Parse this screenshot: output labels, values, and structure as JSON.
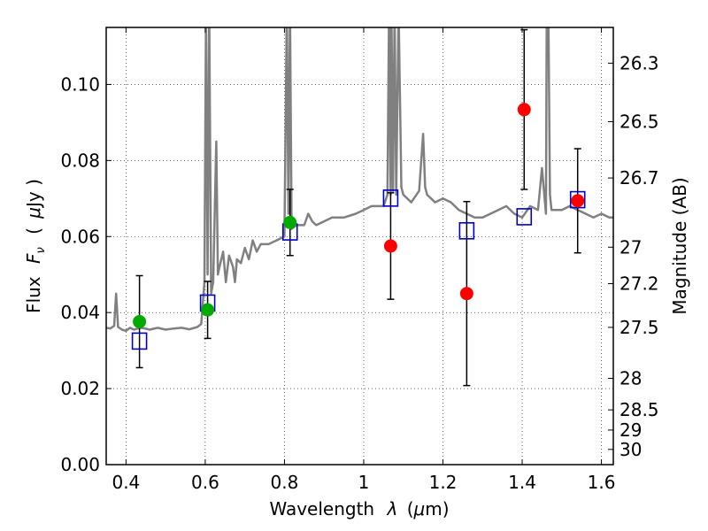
{
  "chart_data": {
    "type": "scatter",
    "title": "",
    "xlabel_text": "Wavelength",
    "xlabel_symbol": "λ",
    "xlabel_unit_open": "(",
    "xlabel_unit_mu": "μ",
    "xlabel_unit_rest": "m)",
    "ylabel_text": "Flux",
    "ylabel_symbol": "F",
    "ylabel_symbol_sub": "ν",
    "ylabel_unit_open": "(",
    "ylabel_unit_mu": "μ",
    "ylabel_unit_rest": "Jy )",
    "y2label": "Magnitude (AB)",
    "xlim": [
      0.35,
      1.63
    ],
    "ylim": [
      0.0,
      0.115
    ],
    "grid": true,
    "xticks": [
      {
        "value": 0.4,
        "label": "0.4"
      },
      {
        "value": 0.6,
        "label": "0.6"
      },
      {
        "value": 0.8,
        "label": "0.8"
      },
      {
        "value": 1.0,
        "label": "1"
      },
      {
        "value": 1.2,
        "label": "1.2"
      },
      {
        "value": 1.4,
        "label": "1.4"
      },
      {
        "value": 1.6,
        "label": "1.6"
      }
    ],
    "yticks": [
      {
        "value": 0.0,
        "label": "0.00"
      },
      {
        "value": 0.02,
        "label": "0.02"
      },
      {
        "value": 0.04,
        "label": "0.04"
      },
      {
        "value": 0.06,
        "label": "0.06"
      },
      {
        "value": 0.08,
        "label": "0.08"
      },
      {
        "value": 0.1,
        "label": "0.10"
      }
    ],
    "y2ticks": [
      {
        "label": "26.3",
        "flux": 0.1056
      },
      {
        "label": "26.5",
        "flux": 0.0902
      },
      {
        "label": "26.7",
        "flux": 0.0754
      },
      {
        "label": "27",
        "flux": 0.0572
      },
      {
        "label": "27.2",
        "flux": 0.0476
      },
      {
        "label": "27.5",
        "flux": 0.0361
      },
      {
        "label": "28",
        "flux": 0.0227
      },
      {
        "label": "28.5",
        "flux": 0.0144
      },
      {
        "label": "29",
        "flux": 0.0091
      },
      {
        "label": "30",
        "flux": 0.004
      }
    ],
    "spectrum": {
      "name": "model spectrum",
      "color": "#808080",
      "x": [
        0.35,
        0.36,
        0.37,
        0.375,
        0.38,
        0.39,
        0.4,
        0.41,
        0.42,
        0.43,
        0.44,
        0.46,
        0.48,
        0.5,
        0.52,
        0.54,
        0.56,
        0.58,
        0.59,
        0.598,
        0.602,
        0.606,
        0.61,
        0.615,
        0.62,
        0.628,
        0.632,
        0.636,
        0.645,
        0.652,
        0.66,
        0.67,
        0.675,
        0.68,
        0.69,
        0.7,
        0.71,
        0.72,
        0.73,
        0.74,
        0.76,
        0.78,
        0.8,
        0.806,
        0.81,
        0.814,
        0.818,
        0.83,
        0.85,
        0.86,
        0.87,
        0.88,
        0.9,
        0.92,
        0.95,
        0.98,
        1.0,
        1.02,
        1.05,
        1.06,
        1.064,
        1.068,
        1.07,
        1.074,
        1.078,
        1.082,
        1.088,
        1.095,
        1.1,
        1.12,
        1.14,
        1.15,
        1.155,
        1.16,
        1.17,
        1.18,
        1.2,
        1.22,
        1.24,
        1.26,
        1.28,
        1.3,
        1.32,
        1.34,
        1.36,
        1.38,
        1.4,
        1.42,
        1.44,
        1.45,
        1.46,
        1.462,
        1.466,
        1.47,
        1.474,
        1.48,
        1.5,
        1.52,
        1.54,
        1.56,
        1.58,
        1.6,
        1.62,
        1.63
      ],
      "y": [
        0.036,
        0.0358,
        0.0365,
        0.045,
        0.0362,
        0.0355,
        0.0352,
        0.036,
        0.0355,
        0.0358,
        0.036,
        0.0355,
        0.036,
        0.0355,
        0.0358,
        0.036,
        0.0356,
        0.0362,
        0.037,
        0.048,
        0.12,
        0.05,
        0.12,
        0.045,
        0.048,
        0.085,
        0.05,
        0.052,
        0.056,
        0.048,
        0.055,
        0.052,
        0.048,
        0.054,
        0.053,
        0.057,
        0.054,
        0.059,
        0.056,
        0.058,
        0.058,
        0.059,
        0.06,
        0.12,
        0.066,
        0.12,
        0.062,
        0.063,
        0.063,
        0.066,
        0.064,
        0.063,
        0.064,
        0.065,
        0.065,
        0.066,
        0.067,
        0.068,
        0.068,
        0.071,
        0.12,
        0.071,
        0.12,
        0.072,
        0.12,
        0.071,
        0.12,
        0.073,
        0.071,
        0.069,
        0.072,
        0.087,
        0.073,
        0.071,
        0.07,
        0.069,
        0.07,
        0.069,
        0.067,
        0.066,
        0.065,
        0.065,
        0.066,
        0.067,
        0.068,
        0.066,
        0.065,
        0.068,
        0.067,
        0.078,
        0.066,
        0.12,
        0.12,
        0.071,
        0.067,
        0.067,
        0.067,
        0.068,
        0.067,
        0.066,
        0.065,
        0.066,
        0.065,
        0.065
      ]
    },
    "series": [
      {
        "name": "model bandpass (blue squares)",
        "marker": "square-open",
        "color": "#0000cc",
        "x": [
          0.434,
          0.606,
          0.814,
          1.068,
          1.26,
          1.405,
          1.54
        ],
        "y": [
          0.0325,
          0.0425,
          0.0612,
          0.0701,
          0.0615,
          0.0652,
          0.0697
        ]
      },
      {
        "name": "detections (green circles)",
        "marker": "circle",
        "color": "#00aa00",
        "x": [
          0.434,
          0.606,
          0.814
        ],
        "y": [
          0.0376,
          0.0407,
          0.0637
        ],
        "yerr": [
          0.0121,
          0.0075,
          0.0087
        ]
      },
      {
        "name": "detections (red circles)",
        "marker": "circle",
        "color": "#ff0000",
        "x": [
          1.068,
          1.26,
          1.405,
          1.54
        ],
        "y": [
          0.0575,
          0.045,
          0.0934,
          0.0694
        ],
        "yerr": [
          0.014,
          0.0242,
          0.021,
          0.0137
        ]
      }
    ]
  }
}
